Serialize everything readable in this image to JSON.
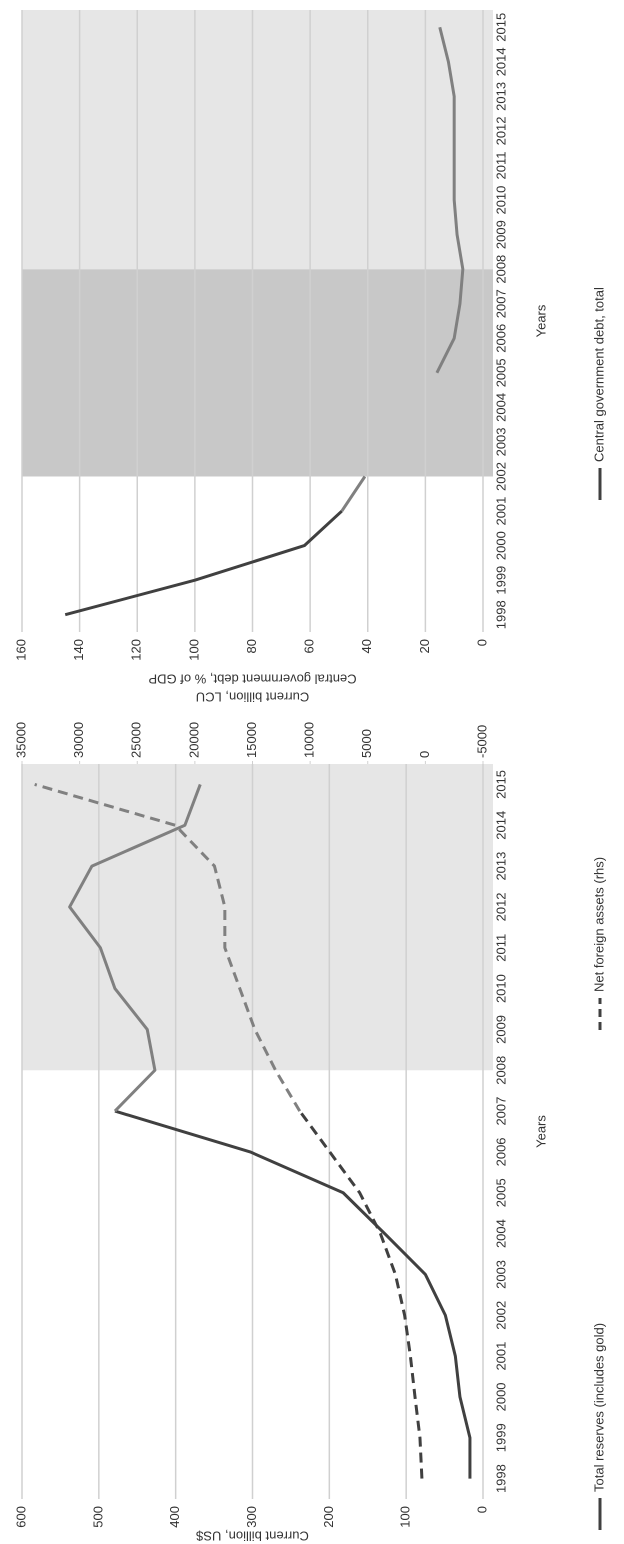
{
  "chart_data": [
    {
      "type": "line",
      "x_label": "Years",
      "y_label": "Current billion, US$",
      "y2_label": "Current billion, LCU",
      "categories": [
        "1998",
        "1999",
        "2000",
        "2001",
        "2002",
        "2003",
        "2004",
        "2005",
        "2006",
        "2007",
        "2008",
        "2009",
        "2010",
        "2011",
        "2012",
        "2013",
        "2014",
        "2015"
      ],
      "ylim": [
        0,
        600
      ],
      "yticks": [
        0,
        100,
        200,
        300,
        400,
        500,
        600
      ],
      "y2lim": [
        -5000,
        35000
      ],
      "y2ticks": [
        -5000,
        0,
        5000,
        10000,
        15000,
        20000,
        25000,
        30000,
        35000
      ],
      "grid": true,
      "periods": [
        {
          "start": "2008",
          "end": "2015",
          "color": "#e6e6e6"
        }
      ],
      "period_line_color": "#808080",
      "series": [
        {
          "name": "Total reserves (includes gold)",
          "color": "#404040",
          "dash": false,
          "values": [
            17,
            17,
            30,
            36,
            49,
            75,
            128,
            182,
            303,
            479,
            427,
            437,
            479,
            498,
            538,
            509,
            388,
            368
          ]
        },
        {
          "name": "Net foreign assets (rhs)",
          "color": "#404040",
          "dash": true,
          "axis": "y2",
          "values": [
            300,
            470,
            900,
            1300,
            1800,
            2600,
            3900,
            5700,
            8300,
            10900,
            13000,
            14800,
            16100,
            17400,
            17400,
            18300,
            21700,
            33900
          ]
        }
      ]
    },
    {
      "type": "line",
      "x_label": "Years",
      "y_label": "Central government debt, % of GDP",
      "categories": [
        "1998",
        "1999",
        "2000",
        "2001",
        "2002",
        "2003",
        "2004",
        "2005",
        "2006",
        "2007",
        "2008",
        "2009",
        "2010",
        "2011",
        "2012",
        "2013",
        "2014",
        "2015"
      ],
      "ylim": [
        0,
        160
      ],
      "yticks": [
        0,
        20,
        40,
        60,
        80,
        100,
        120,
        140,
        160
      ],
      "grid": true,
      "periods": [
        {
          "start": "2002",
          "end": "2008",
          "color": "#c8c8c8"
        },
        {
          "start": "2008",
          "end": "2015",
          "color": "#e6e6e6"
        }
      ],
      "period_line_color": "#808080",
      "series": [
        {
          "name": "Central government debt, total",
          "color": "#404040",
          "dash": false,
          "values": [
            145,
            100,
            62,
            49,
            41,
            null,
            null,
            16,
            10,
            8,
            7,
            9,
            10,
            10,
            10,
            10,
            12,
            15
          ]
        }
      ]
    }
  ]
}
